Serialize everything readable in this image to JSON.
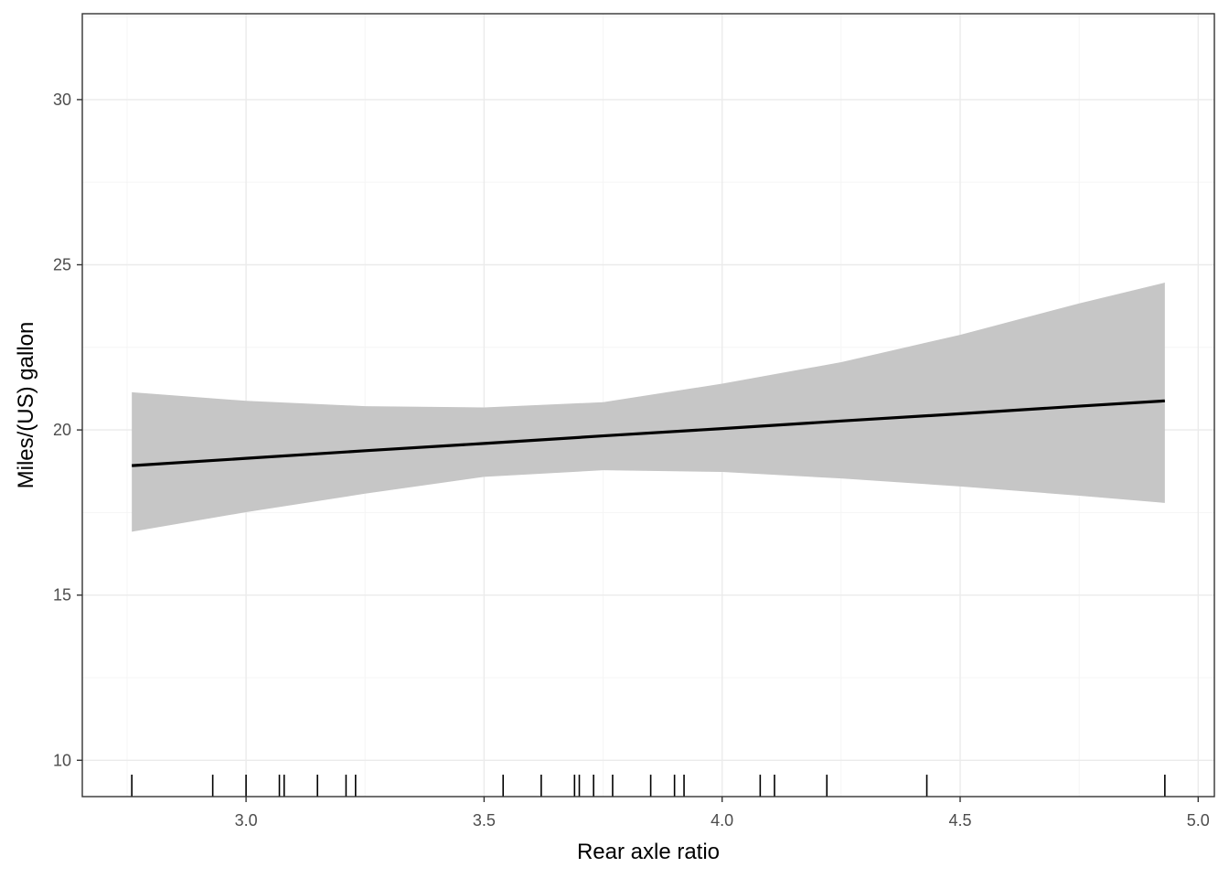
{
  "chart_data": {
    "type": "line",
    "title": "",
    "xlabel": "Rear axle ratio",
    "ylabel": "Miles/(US) gallon",
    "xlim": [
      2.656,
      5.034
    ],
    "ylim": [
      8.9,
      32.6
    ],
    "x_ticks": [
      3.0,
      3.5,
      4.0,
      4.5,
      5.0
    ],
    "x_tick_labels": [
      "3.0",
      "3.5",
      "4.0",
      "4.5",
      "5.0"
    ],
    "y_ticks": [
      10,
      15,
      20,
      25,
      30
    ],
    "y_tick_labels": [
      "10",
      "15",
      "20",
      "25",
      "30"
    ],
    "grid": true,
    "legend": "none",
    "series": [
      {
        "x": [
          2.76,
          3.0,
          3.25,
          3.5,
          3.75,
          4.0,
          4.25,
          4.5,
          4.75,
          4.93
        ],
        "y": [
          18.92,
          19.14,
          19.37,
          19.59,
          19.82,
          20.04,
          20.27,
          20.49,
          20.72,
          20.88
        ],
        "ci_lower": [
          16.92,
          17.51,
          18.07,
          18.58,
          18.78,
          18.73,
          18.53,
          18.29,
          18.01,
          17.79
        ],
        "ci_upper": [
          21.14,
          20.88,
          20.72,
          20.68,
          20.84,
          21.4,
          22.05,
          22.88,
          23.83,
          24.46
        ]
      }
    ],
    "rug_x": [
      2.76,
      2.93,
      3.0,
      3.07,
      3.08,
      3.15,
      3.21,
      3.23,
      3.54,
      3.62,
      3.69,
      3.7,
      3.73,
      3.77,
      3.85,
      3.9,
      3.92,
      4.08,
      4.11,
      4.22,
      4.43,
      4.93
    ],
    "colors": {
      "line": "#000000",
      "ribbon": "#c6c6c6",
      "grid_major": "#ebebeb",
      "grid_minor": "#f5f5f5",
      "panel_border": "#333333",
      "tick_label": "#4d4d4d"
    }
  }
}
